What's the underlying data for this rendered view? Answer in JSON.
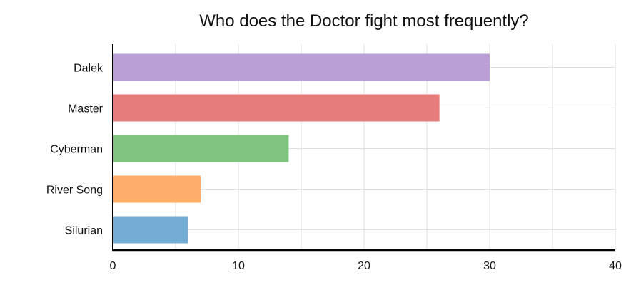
{
  "chart_data": {
    "type": "bar",
    "orientation": "horizontal",
    "title": "Who does the Doctor fight most frequently?",
    "categories": [
      "Dalek",
      "Master",
      "Cyberman",
      "River Song",
      "Silurian"
    ],
    "values": [
      30,
      26,
      14,
      7,
      6
    ],
    "colors": [
      "#b99fd5",
      "#e57b7b",
      "#7fc57f",
      "#ffae6b",
      "#73acd4"
    ],
    "xlim": [
      0,
      40
    ],
    "xticks": [
      0,
      10,
      20,
      30,
      40
    ],
    "xlabel": "",
    "ylabel": "",
    "grid": true,
    "legend": "none"
  }
}
